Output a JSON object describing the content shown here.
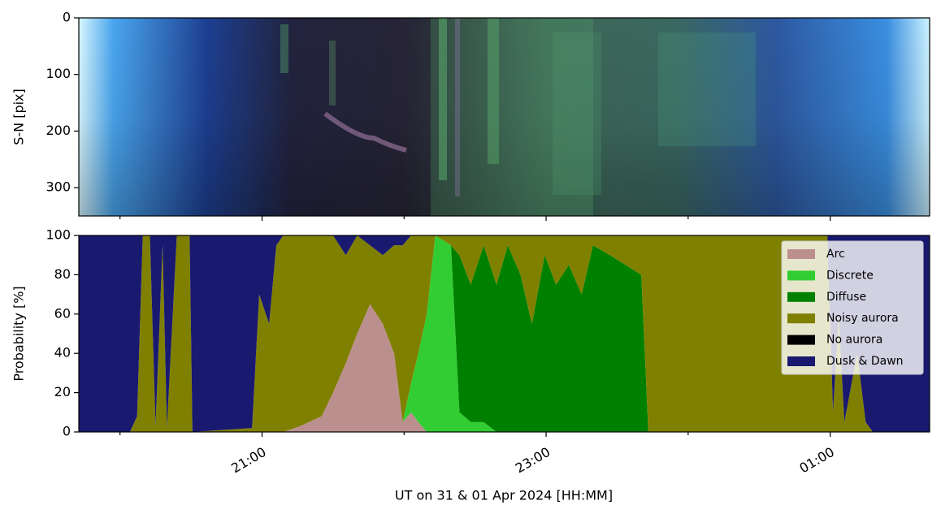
{
  "chart_data": [
    {
      "type": "image",
      "ylabel": "S-N [pix]",
      "ylim": [
        350,
        0
      ],
      "yticks": [
        0,
        100,
        200,
        300
      ]
    },
    {
      "type": "area",
      "stacked": true,
      "ylabel": "Probability [%]",
      "xlabel": "UT on 31 & 01 Apr 2024 [HH:MM]",
      "xlim": [
        19.71,
        25.7
      ],
      "xticks": [
        {
          "value": 21,
          "label": "21:00"
        },
        {
          "value": 23,
          "label": "23:00"
        },
        {
          "value": 25,
          "label": "01:00"
        }
      ],
      "xminorticks": [
        20,
        22,
        24
      ],
      "ylim": [
        0,
        100
      ],
      "yticks": [
        0,
        20,
        40,
        60,
        80,
        100
      ],
      "grid": false,
      "legend": "upper right",
      "x": [
        19.71,
        20.07,
        20.12,
        20.16,
        20.21,
        20.25,
        20.3,
        20.33,
        20.4,
        20.49,
        20.51,
        20.93,
        20.98,
        21.05,
        21.1,
        21.15,
        21.27,
        21.42,
        21.5,
        21.59,
        21.67,
        21.76,
        21.85,
        21.93,
        21.99,
        22.05,
        22.1,
        22.16,
        22.22,
        22.33,
        22.39,
        22.47,
        22.56,
        22.65,
        22.73,
        22.82,
        22.9,
        22.99,
        23.07,
        23.16,
        23.25,
        23.33,
        23.45,
        23.56,
        23.67,
        23.72,
        24.3,
        24.98,
        25.02,
        25.06,
        25.1,
        25.19,
        25.25,
        25.3,
        25.7
      ],
      "series": [
        {
          "name": "Arc",
          "color": "#bc8f8f",
          "values": [
            0,
            0,
            0,
            0,
            0,
            0,
            0,
            0,
            0,
            0,
            0,
            0,
            0,
            0,
            0,
            0,
            3,
            8,
            20,
            35,
            50,
            65,
            55,
            40,
            5,
            10,
            5,
            0,
            0,
            0,
            0,
            0,
            0,
            0,
            0,
            0,
            0,
            0,
            0,
            0,
            0,
            0,
            0,
            0,
            0,
            0,
            0,
            0,
            0,
            0,
            0,
            0,
            0,
            0,
            0
          ]
        },
        {
          "name": "Discrete",
          "color": "#32cd32",
          "values": [
            0,
            0,
            0,
            0,
            0,
            0,
            0,
            0,
            0,
            0,
            0,
            0,
            0,
            0,
            0,
            0,
            0,
            0,
            0,
            0,
            0,
            0,
            0,
            0,
            0,
            15,
            35,
            60,
            100,
            95,
            10,
            5,
            5,
            0,
            0,
            0,
            0,
            0,
            0,
            0,
            0,
            0,
            0,
            0,
            0,
            0,
            0,
            0,
            0,
            0,
            0,
            0,
            0,
            0,
            0
          ]
        },
        {
          "name": "Diffuse",
          "color": "#008000",
          "values": [
            0,
            0,
            0,
            0,
            0,
            0,
            0,
            0,
            0,
            0,
            0,
            0,
            0,
            0,
            0,
            0,
            0,
            0,
            0,
            0,
            0,
            0,
            0,
            0,
            0,
            0,
            0,
            0,
            0,
            0,
            80,
            70,
            90,
            75,
            95,
            80,
            55,
            90,
            75,
            85,
            70,
            95,
            90,
            85,
            80,
            0,
            0,
            0,
            0,
            0,
            0,
            0,
            0,
            0,
            0
          ]
        },
        {
          "name": "Noisy aurora",
          "color": "#808000",
          "values": [
            0,
            0,
            8,
            100,
            100,
            3,
            95,
            2,
            100,
            100,
            0,
            2,
            70,
            55,
            95,
            100,
            97,
            92,
            80,
            55,
            50,
            30,
            35,
            55,
            90,
            75,
            60,
            40,
            0,
            5,
            10,
            25,
            5,
            25,
            5,
            20,
            45,
            10,
            25,
            15,
            30,
            5,
            10,
            15,
            20,
            100,
            100,
            100,
            10,
            60,
            5,
            40,
            5,
            0,
            0
          ]
        },
        {
          "name": "No aurora",
          "color": "#000000",
          "values": [
            0,
            0,
            0,
            0,
            0,
            0,
            0,
            0,
            0,
            0,
            0,
            0,
            0,
            0,
            0,
            0,
            0,
            0,
            0,
            0,
            0,
            0,
            0,
            0,
            0,
            0,
            0,
            0,
            0,
            0,
            0,
            0,
            0,
            0,
            0,
            0,
            0,
            0,
            0,
            0,
            0,
            0,
            0,
            0,
            0,
            0,
            0,
            0,
            0,
            0,
            0,
            0,
            0,
            0,
            0
          ]
        },
        {
          "name": "Dusk & Dawn",
          "color": "#191970",
          "values": [
            100,
            100,
            92,
            0,
            0,
            97,
            5,
            98,
            0,
            0,
            100,
            98,
            30,
            45,
            5,
            0,
            0,
            0,
            0,
            10,
            0,
            5,
            10,
            5,
            5,
            0,
            0,
            0,
            0,
            0,
            0,
            0,
            0,
            0,
            0,
            0,
            0,
            0,
            0,
            0,
            0,
            0,
            0,
            0,
            0,
            0,
            0,
            0,
            90,
            40,
            95,
            60,
            95,
            100,
            100
          ]
        }
      ]
    }
  ]
}
